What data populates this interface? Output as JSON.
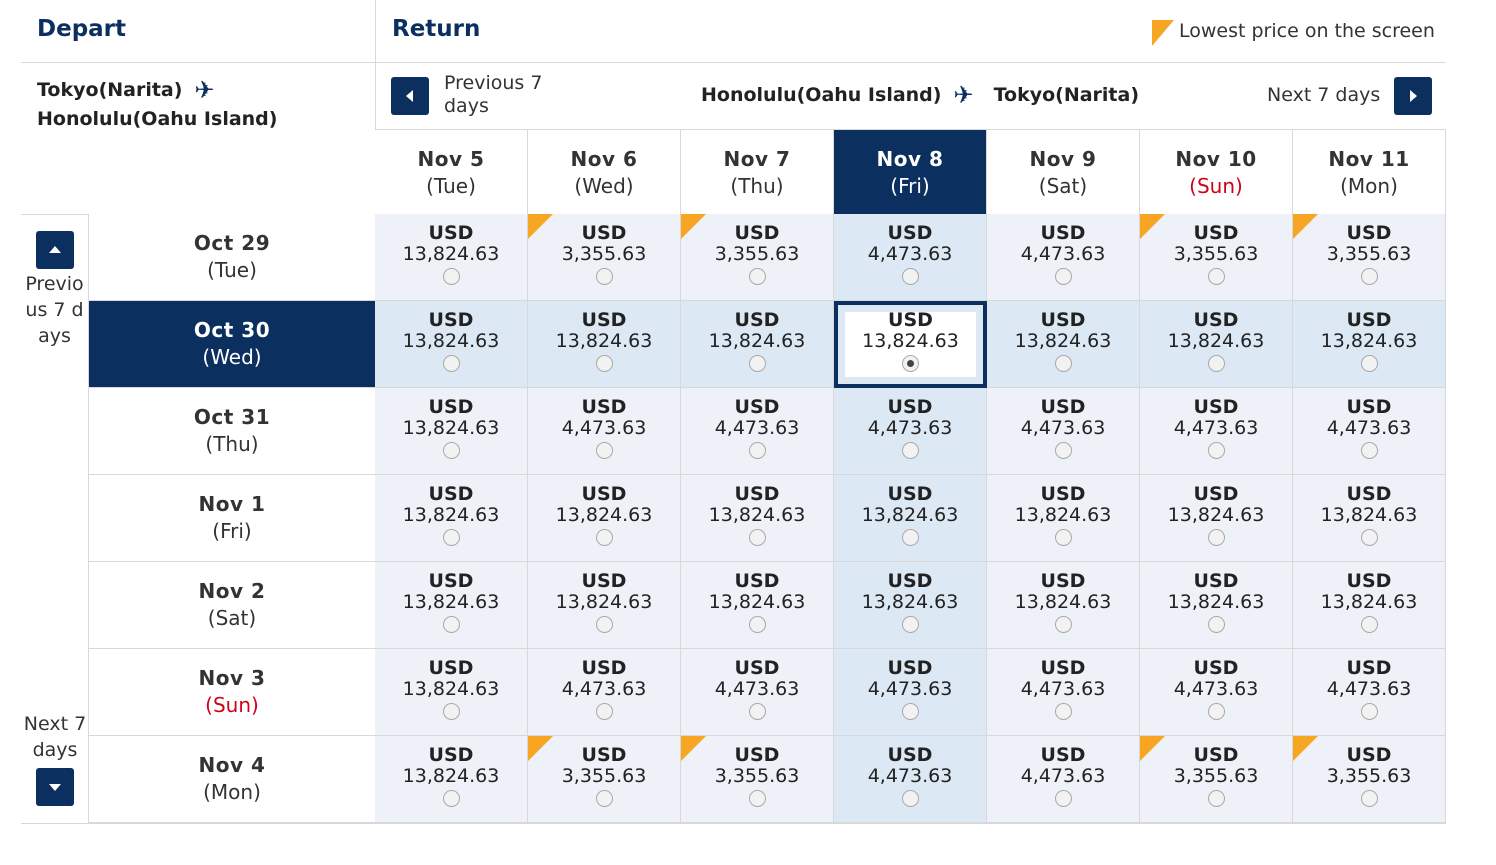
{
  "header": {
    "depart_title": "Depart",
    "return_title": "Return",
    "legend_text": "Lowest price on the screen",
    "colors": {
      "navy": "#0b2f5e",
      "orange": "#f6a623",
      "sunday_red": "#d0021b"
    }
  },
  "depart_route": {
    "from": "Tokyo(Narita)",
    "to": "Honolulu(Oahu Island)",
    "icon": "airplane-icon"
  },
  "return_route": {
    "from": "Honolulu(Oahu Island)",
    "to": "Tokyo(Narita)",
    "icon": "airplane-icon"
  },
  "return_nav": {
    "prev_label": "Previous 7 days",
    "next_label": "Next 7 days"
  },
  "depart_nav": {
    "prev_label": "Previous 7 days",
    "next_label": "Next 7 days"
  },
  "return_days": [
    {
      "date": "Nov 5",
      "dow": "(Tue)"
    },
    {
      "date": "Nov 6",
      "dow": "(Wed)"
    },
    {
      "date": "Nov 7",
      "dow": "(Thu)"
    },
    {
      "date": "Nov 8",
      "dow": "(Fri)"
    },
    {
      "date": "Nov 9",
      "dow": "(Sat)"
    },
    {
      "date": "Nov 10",
      "dow": "(Sun)"
    },
    {
      "date": "Nov 11",
      "dow": "(Mon)"
    }
  ],
  "selected_return_index": 3,
  "depart_days": [
    {
      "date": "Oct 29",
      "dow": "(Tue)"
    },
    {
      "date": "Oct 30",
      "dow": "(Wed)"
    },
    {
      "date": "Oct 31",
      "dow": "(Thu)"
    },
    {
      "date": "Nov 1",
      "dow": "(Fri)"
    },
    {
      "date": "Nov 2",
      "dow": "(Sat)"
    },
    {
      "date": "Nov 3",
      "dow": "(Sun)"
    },
    {
      "date": "Nov 4",
      "dow": "(Mon)"
    }
  ],
  "selected_depart_index": 1,
  "currency": "USD",
  "prices": [
    [
      "13,824.63",
      "3,355.63",
      "3,355.63",
      "4,473.63",
      "4,473.63",
      "3,355.63",
      "3,355.63"
    ],
    [
      "13,824.63",
      "13,824.63",
      "13,824.63",
      "13,824.63",
      "13,824.63",
      "13,824.63",
      "13,824.63"
    ],
    [
      "13,824.63",
      "4,473.63",
      "4,473.63",
      "4,473.63",
      "4,473.63",
      "4,473.63",
      "4,473.63"
    ],
    [
      "13,824.63",
      "13,824.63",
      "13,824.63",
      "13,824.63",
      "13,824.63",
      "13,824.63",
      "13,824.63"
    ],
    [
      "13,824.63",
      "13,824.63",
      "13,824.63",
      "13,824.63",
      "13,824.63",
      "13,824.63",
      "13,824.63"
    ],
    [
      "13,824.63",
      "4,473.63",
      "4,473.63",
      "4,473.63",
      "4,473.63",
      "4,473.63",
      "4,473.63"
    ],
    [
      "13,824.63",
      "3,355.63",
      "3,355.63",
      "4,473.63",
      "4,473.63",
      "3,355.63",
      "3,355.63"
    ]
  ],
  "lowest_flags": [
    [
      false,
      true,
      true,
      false,
      false,
      true,
      true
    ],
    [
      false,
      false,
      false,
      false,
      false,
      false,
      false
    ],
    [
      false,
      false,
      false,
      false,
      false,
      false,
      false
    ],
    [
      false,
      false,
      false,
      false,
      false,
      false,
      false
    ],
    [
      false,
      false,
      false,
      false,
      false,
      false,
      false
    ],
    [
      false,
      false,
      false,
      false,
      false,
      false,
      false
    ],
    [
      false,
      true,
      true,
      false,
      false,
      true,
      true
    ]
  ]
}
